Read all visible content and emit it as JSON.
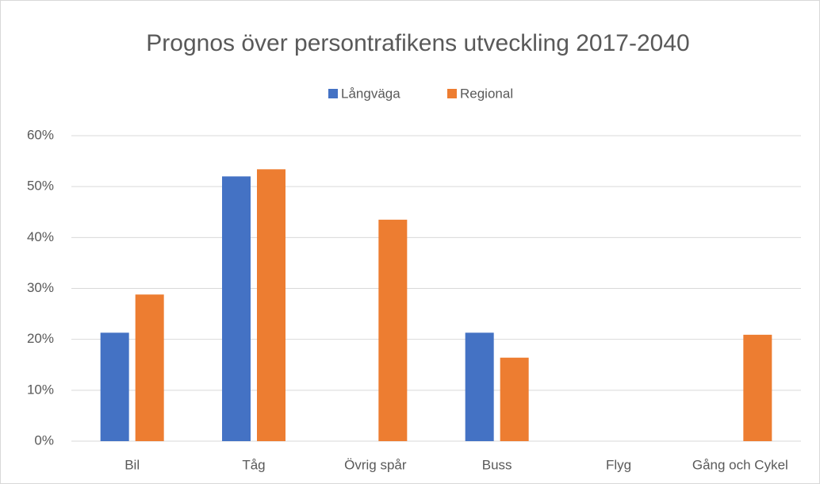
{
  "chart_data": {
    "type": "bar",
    "title": "Prognos över persontrafikens utveckling 2017-2040",
    "categories": [
      "Bil",
      "Tåg",
      "Övrig spår",
      "Buss",
      "Flyg",
      "Gång och Cykel"
    ],
    "series": [
      {
        "name": "Långväga",
        "color": "#4472c4",
        "values": [
          21.3,
          52.0,
          null,
          21.3,
          null,
          null
        ]
      },
      {
        "name": "Regional",
        "color": "#ed7d31",
        "values": [
          28.8,
          53.4,
          43.5,
          16.4,
          null,
          20.9
        ]
      }
    ],
    "ylim": [
      0,
      60
    ],
    "yticks": [
      {
        "value": 0,
        "label": "0%"
      },
      {
        "value": 10,
        "label": "10%"
      },
      {
        "value": 20,
        "label": "20%"
      },
      {
        "value": 30,
        "label": "30%"
      },
      {
        "value": 40,
        "label": "40%"
      },
      {
        "value": 50,
        "label": "50%"
      },
      {
        "value": 60,
        "label": "60%"
      }
    ],
    "grid": true,
    "legend": "top"
  }
}
